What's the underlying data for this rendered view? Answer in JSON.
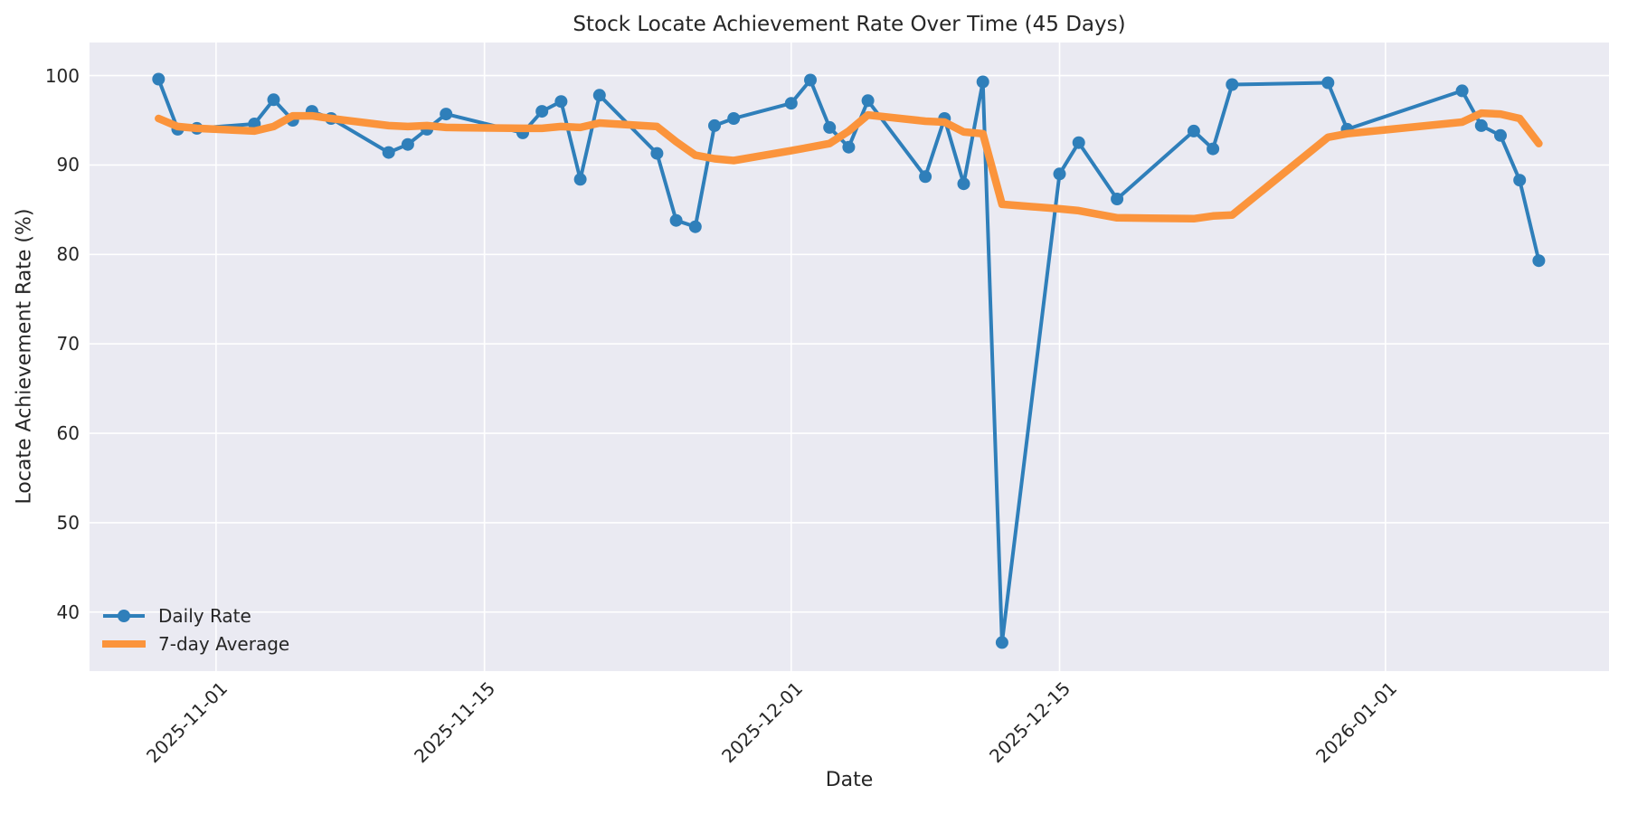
{
  "chart_data": {
    "type": "line",
    "title": "Stock Locate Achievement Rate Over Time (45 Days)",
    "xlabel": "Date",
    "ylabel": "Locate Achievement Rate (%)",
    "grid": true,
    "background": "#eaeaf2",
    "gridline_color": "#ffffff",
    "legend_position": "lower left",
    "x": [
      "2025-10-29",
      "2025-10-30",
      "2025-10-31",
      "2025-11-03",
      "2025-11-04",
      "2025-11-05",
      "2025-11-06",
      "2025-11-07",
      "2025-11-10",
      "2025-11-11",
      "2025-11-12",
      "2025-11-13",
      "2025-11-17",
      "2025-11-18",
      "2025-11-19",
      "2025-11-20",
      "2025-11-21",
      "2025-11-24",
      "2025-11-25",
      "2025-11-26",
      "2025-11-27",
      "2025-11-28",
      "2025-12-01",
      "2025-12-02",
      "2025-12-03",
      "2025-12-04",
      "2025-12-05",
      "2025-12-08",
      "2025-12-09",
      "2025-12-10",
      "2025-12-11",
      "2025-12-12",
      "2025-12-15",
      "2025-12-16",
      "2025-12-18",
      "2025-12-22",
      "2025-12-23",
      "2025-12-24",
      "2025-12-29",
      "2025-12-30",
      "2026-01-05",
      "2026-01-06",
      "2026-01-07",
      "2026-01-08",
      "2026-01-09"
    ],
    "series": [
      {
        "name": "Daily Rate",
        "color": "#2f7fba",
        "marker": "circle",
        "line_width": 4,
        "values": [
          99.6,
          94.0,
          94.1,
          94.6,
          97.3,
          95.0,
          96.0,
          95.2,
          91.4,
          92.3,
          94.0,
          95.7,
          93.6,
          96.0,
          97.1,
          88.4,
          97.8,
          91.3,
          83.8,
          83.1,
          94.4,
          95.2,
          96.9,
          99.5,
          94.2,
          92.0,
          97.2,
          88.7,
          95.2,
          87.9,
          99.3,
          36.6,
          89.0,
          92.5,
          86.2,
          93.8,
          91.8,
          99.0,
          99.2,
          94.0,
          98.3,
          94.4,
          93.3,
          88.3,
          79.3
        ]
      },
      {
        "name": "7-day Average",
        "color": "#fb943c",
        "marker": "none",
        "line_width": 8.5,
        "values": [
          95.2,
          94.3,
          94.1,
          93.8,
          94.3,
          95.5,
          95.5,
          95.2,
          94.4,
          94.3,
          94.4,
          94.2,
          94.1,
          94.1,
          94.3,
          94.2,
          94.7,
          94.3,
          92.6,
          91.1,
          90.7,
          90.5,
          91.6,
          92.0,
          92.4,
          93.8,
          95.6,
          94.9,
          94.8,
          93.7,
          93.5,
          85.6,
          85.1,
          84.9,
          84.1,
          84.0,
          84.3,
          84.4,
          93.1,
          93.5,
          94.8,
          95.8,
          95.7,
          95.2,
          92.4
        ]
      }
    ],
    "yticks": [
      40,
      50,
      60,
      70,
      80,
      90,
      100
    ],
    "xticks": [
      "2025-11-01",
      "2025-11-15",
      "2025-12-01",
      "2025-12-15",
      "2026-01-01"
    ],
    "ylim": [
      33.4,
      103.7
    ],
    "xlim_day_offsets": [
      -3.6,
      75.66
    ]
  }
}
